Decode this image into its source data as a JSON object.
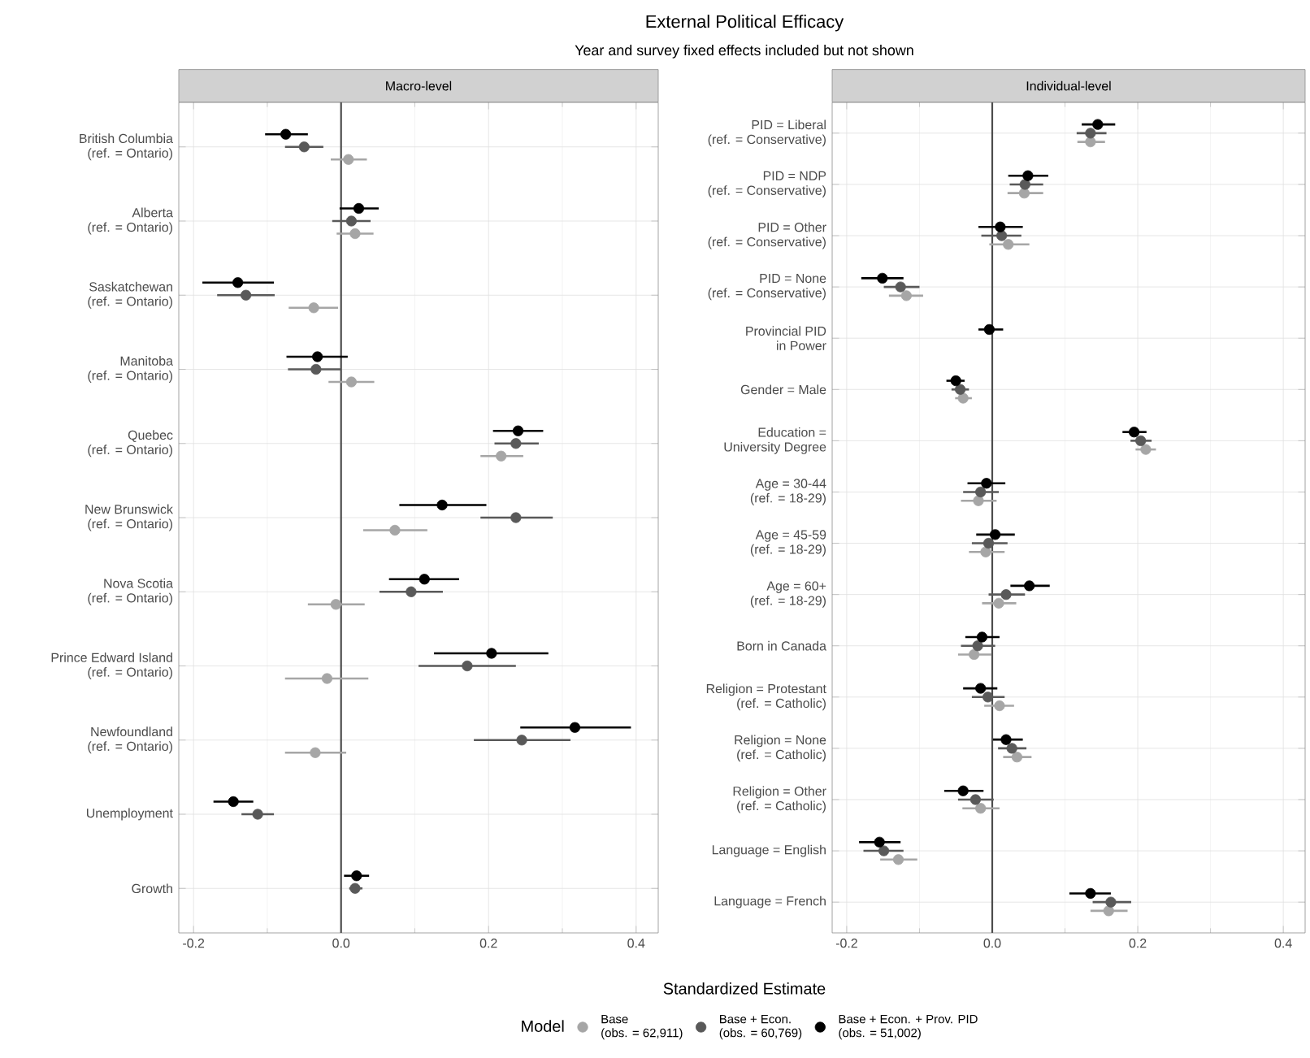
{
  "chart_data": [
    {
      "type": "scatter",
      "orientation": "horizontal",
      "title": "External Political Efficacy",
      "subtitle": "Year and survey fixed effects included but not shown",
      "annotations": [
        "Macro-level"
      ],
      "xlabel": "Standardized Estimate",
      "legend": "bottom",
      "legend_title": "Model",
      "marker": "circle",
      "grid": true,
      "categories": [
        "British Columbia\n(ref. = Ontario)",
        "Alberta\n(ref. = Ontario)",
        "Saskatchewan\n(ref. = Ontario)",
        "Manitoba\n(ref. = Ontario)",
        "Quebec\n(ref. = Ontario)",
        "New Brunswick\n(ref. = Ontario)",
        "Nova Scotia\n(ref. = Ontario)",
        "Prince Edward Island\n(ref. = Ontario)",
        "Newfoundland\n(ref. = Ontario)",
        "Unemployment",
        "Growth"
      ],
      "xlim": [
        -0.22,
        0.43
      ],
      "xticks": [
        {
          "value": -0.2,
          "label": "-0.2"
        },
        {
          "value": 0,
          "label": "0.0"
        },
        {
          "value": 0.2,
          "label": "0.2"
        },
        {
          "value": 0.4,
          "label": "0.4"
        }
      ],
      "ref_lines": [
        {
          "axis": "x",
          "value": 0,
          "color": "#4d4d4d"
        }
      ],
      "series": [
        {
          "name": "Base\n(obs. = 62,911)",
          "color": "#a6a6a6",
          "values": [
            0.01,
            0.019,
            -0.037,
            0.014,
            0.217,
            0.073,
            -0.007,
            -0.019,
            -0.035,
            null,
            null
          ],
          "errors": [
            [
              -0.014,
              0.035
            ],
            [
              -0.006,
              0.044
            ],
            [
              -0.071,
              -0.004
            ],
            [
              -0.017,
              0.045
            ],
            [
              0.189,
              0.247
            ],
            [
              0.03,
              0.117
            ],
            [
              -0.045,
              0.032
            ],
            [
              -0.076,
              0.037
            ],
            [
              -0.076,
              0.007
            ],
            null,
            null
          ]
        },
        {
          "name": "Base + Econ.\n(obs. = 60,769)",
          "color": "#595959",
          "values": [
            -0.05,
            0.014,
            -0.129,
            -0.034,
            0.237,
            0.237,
            0.095,
            0.171,
            0.245,
            -0.113,
            0.019
          ],
          "errors": [
            [
              -0.076,
              -0.024
            ],
            [
              -0.012,
              0.04
            ],
            [
              -0.168,
              -0.09
            ],
            [
              -0.072,
              0.0
            ],
            [
              0.208,
              0.268
            ],
            [
              0.189,
              0.287
            ],
            [
              0.052,
              0.138
            ],
            [
              0.105,
              0.237
            ],
            [
              0.18,
              0.311
            ],
            [
              -0.135,
              -0.091
            ],
            [
              0.011,
              0.029
            ]
          ]
        },
        {
          "name": "Base + Econ. + Prov. PID\n(obs. = 51,002)",
          "color": "#000000",
          "values": [
            -0.075,
            0.024,
            -0.14,
            -0.032,
            0.24,
            0.137,
            0.113,
            0.204,
            0.317,
            -0.146,
            0.021
          ],
          "errors": [
            [
              -0.103,
              -0.045
            ],
            [
              -0.002,
              0.051
            ],
            [
              -0.188,
              -0.091
            ],
            [
              -0.074,
              0.009
            ],
            [
              0.206,
              0.274
            ],
            [
              0.079,
              0.197
            ],
            [
              0.065,
              0.16
            ],
            [
              0.126,
              0.281
            ],
            [
              0.243,
              0.393
            ],
            [
              -0.173,
              -0.119
            ],
            [
              0.004,
              0.038
            ]
          ]
        }
      ]
    },
    {
      "type": "scatter",
      "orientation": "horizontal",
      "annotations": [
        "Individual-level"
      ],
      "marker": "circle",
      "grid": true,
      "categories": [
        "PID = Liberal\n(ref. = Conservative)",
        "PID = NDP\n(ref. = Conservative)",
        "PID = Other\n(ref. = Conservative)",
        "PID = None\n(ref. = Conservative)",
        "Provincial PID\nin Power",
        "Gender = Male",
        "Education =\nUniversity Degree",
        "Age = 30-44\n(ref. = 18-29)",
        "Age = 45-59\n(ref. = 18-29)",
        "Age = 60+\n(ref. = 18-29)",
        "Born in Canada",
        "Religion = Protestant\n(ref. = Catholic)",
        "Religion = None\n(ref. = Catholic)",
        "Religion = Other\n(ref. = Catholic)",
        "Language = English",
        "Language = French"
      ],
      "xlim": [
        -0.22,
        0.43
      ],
      "xticks": [
        {
          "value": -0.2,
          "label": "-0.2"
        },
        {
          "value": 0,
          "label": "0.0"
        },
        {
          "value": 0.2,
          "label": "0.2"
        },
        {
          "value": 0.4,
          "label": "0.4"
        }
      ],
      "ref_lines": [
        {
          "axis": "x",
          "value": 0,
          "color": "#4d4d4d"
        }
      ],
      "series": [
        {
          "color": "#a6a6a6",
          "values": [
            0.135,
            0.044,
            0.022,
            -0.118,
            null,
            -0.04,
            0.211,
            -0.019,
            -0.009,
            0.009,
            -0.025,
            0.01,
            0.034,
            -0.016,
            -0.129,
            0.16
          ],
          "errors": [
            [
              0.117,
              0.155
            ],
            [
              0.021,
              0.07
            ],
            [
              -0.004,
              0.051
            ],
            [
              -0.142,
              -0.095
            ],
            null,
            [
              -0.051,
              -0.028
            ],
            [
              0.197,
              0.225
            ],
            [
              -0.043,
              0.006
            ],
            [
              -0.032,
              0.017
            ],
            [
              -0.014,
              0.033
            ],
            [
              -0.047,
              -0.001
            ],
            [
              -0.011,
              0.03
            ],
            [
              0.015,
              0.054
            ],
            [
              -0.041,
              0.01
            ],
            [
              -0.154,
              -0.103
            ],
            [
              0.135,
              0.186
            ]
          ]
        },
        {
          "color": "#595959",
          "values": [
            0.135,
            0.045,
            0.013,
            -0.126,
            null,
            -0.044,
            0.204,
            -0.016,
            -0.005,
            0.019,
            -0.02,
            -0.006,
            0.027,
            -0.023,
            -0.149,
            0.163
          ],
          "errors": [
            [
              0.116,
              0.157
            ],
            [
              0.024,
              0.07
            ],
            [
              -0.015,
              0.04
            ],
            [
              -0.149,
              -0.1
            ],
            null,
            [
              -0.056,
              -0.032
            ],
            [
              0.19,
              0.219
            ],
            [
              -0.04,
              0.009
            ],
            [
              -0.028,
              0.021
            ],
            [
              -0.005,
              0.045
            ],
            [
              -0.043,
              0.004
            ],
            [
              -0.028,
              0.017
            ],
            [
              0.008,
              0.047
            ],
            [
              -0.047,
              0.002
            ],
            [
              -0.177,
              -0.122
            ],
            [
              0.138,
              0.191
            ]
          ]
        },
        {
          "color": "#000000",
          "values": [
            0.145,
            0.049,
            0.011,
            -0.151,
            -0.004,
            -0.05,
            0.195,
            -0.008,
            0.004,
            0.051,
            -0.014,
            -0.016,
            0.019,
            -0.04,
            -0.155,
            0.135
          ],
          "errors": [
            [
              0.123,
              0.169
            ],
            [
              0.022,
              0.077
            ],
            [
              -0.019,
              0.042
            ],
            [
              -0.18,
              -0.122
            ],
            [
              -0.019,
              0.015
            ],
            [
              -0.063,
              -0.038
            ],
            [
              0.179,
              0.212
            ],
            [
              -0.034,
              0.018
            ],
            [
              -0.022,
              0.031
            ],
            [
              0.025,
              0.079
            ],
            [
              -0.037,
              0.01
            ],
            [
              -0.04,
              0.007
            ],
            [
              0.001,
              0.042
            ],
            [
              -0.066,
              -0.012
            ],
            [
              -0.183,
              -0.126
            ],
            [
              0.106,
              0.163
            ]
          ]
        }
      ]
    }
  ]
}
